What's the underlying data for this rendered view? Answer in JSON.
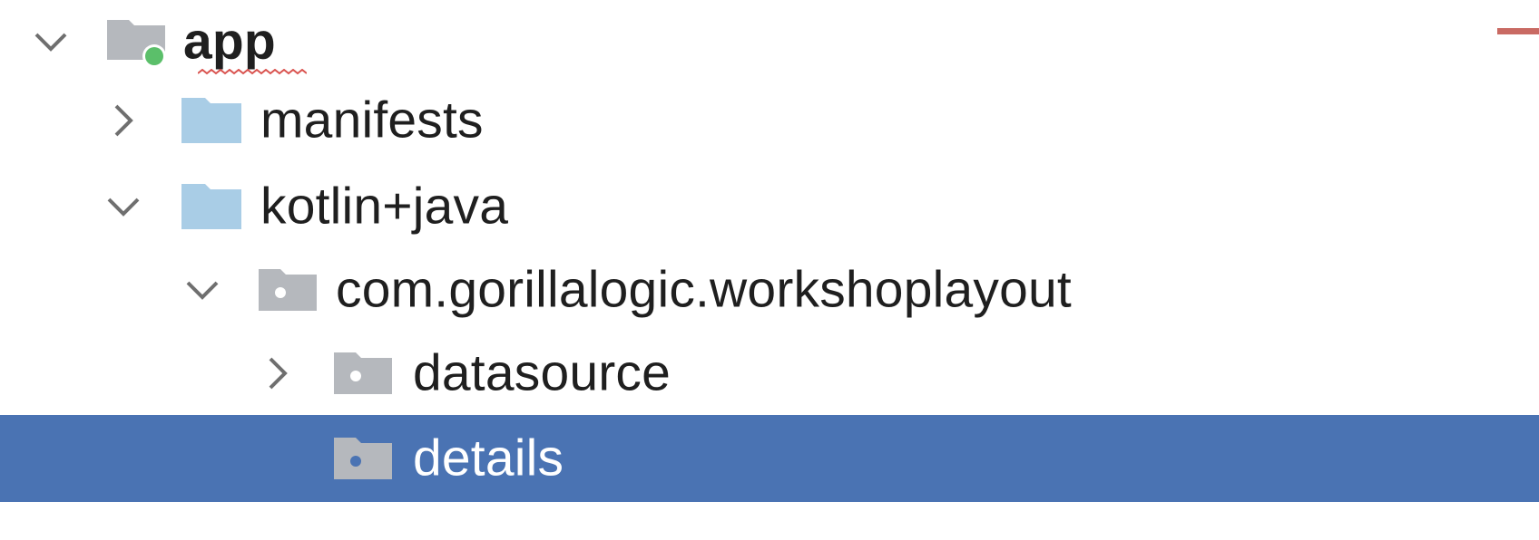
{
  "project_tree": {
    "items": [
      {
        "label": "app",
        "expanded": true
      },
      {
        "label": "manifests",
        "expanded": false
      },
      {
        "label": "kotlin+java",
        "expanded": true
      },
      {
        "label": "com.gorillalogic.workshoplayout",
        "expanded": true
      },
      {
        "label": "datasource",
        "expanded": false
      },
      {
        "label": "details",
        "selected": true
      }
    ]
  },
  "colors": {
    "selection": "#4a73b3",
    "source_folder": "#a9cde6",
    "package_folder": "#b5b8bd",
    "module_badge": "#5bbf6a",
    "error_stripe": "#c96a63"
  }
}
